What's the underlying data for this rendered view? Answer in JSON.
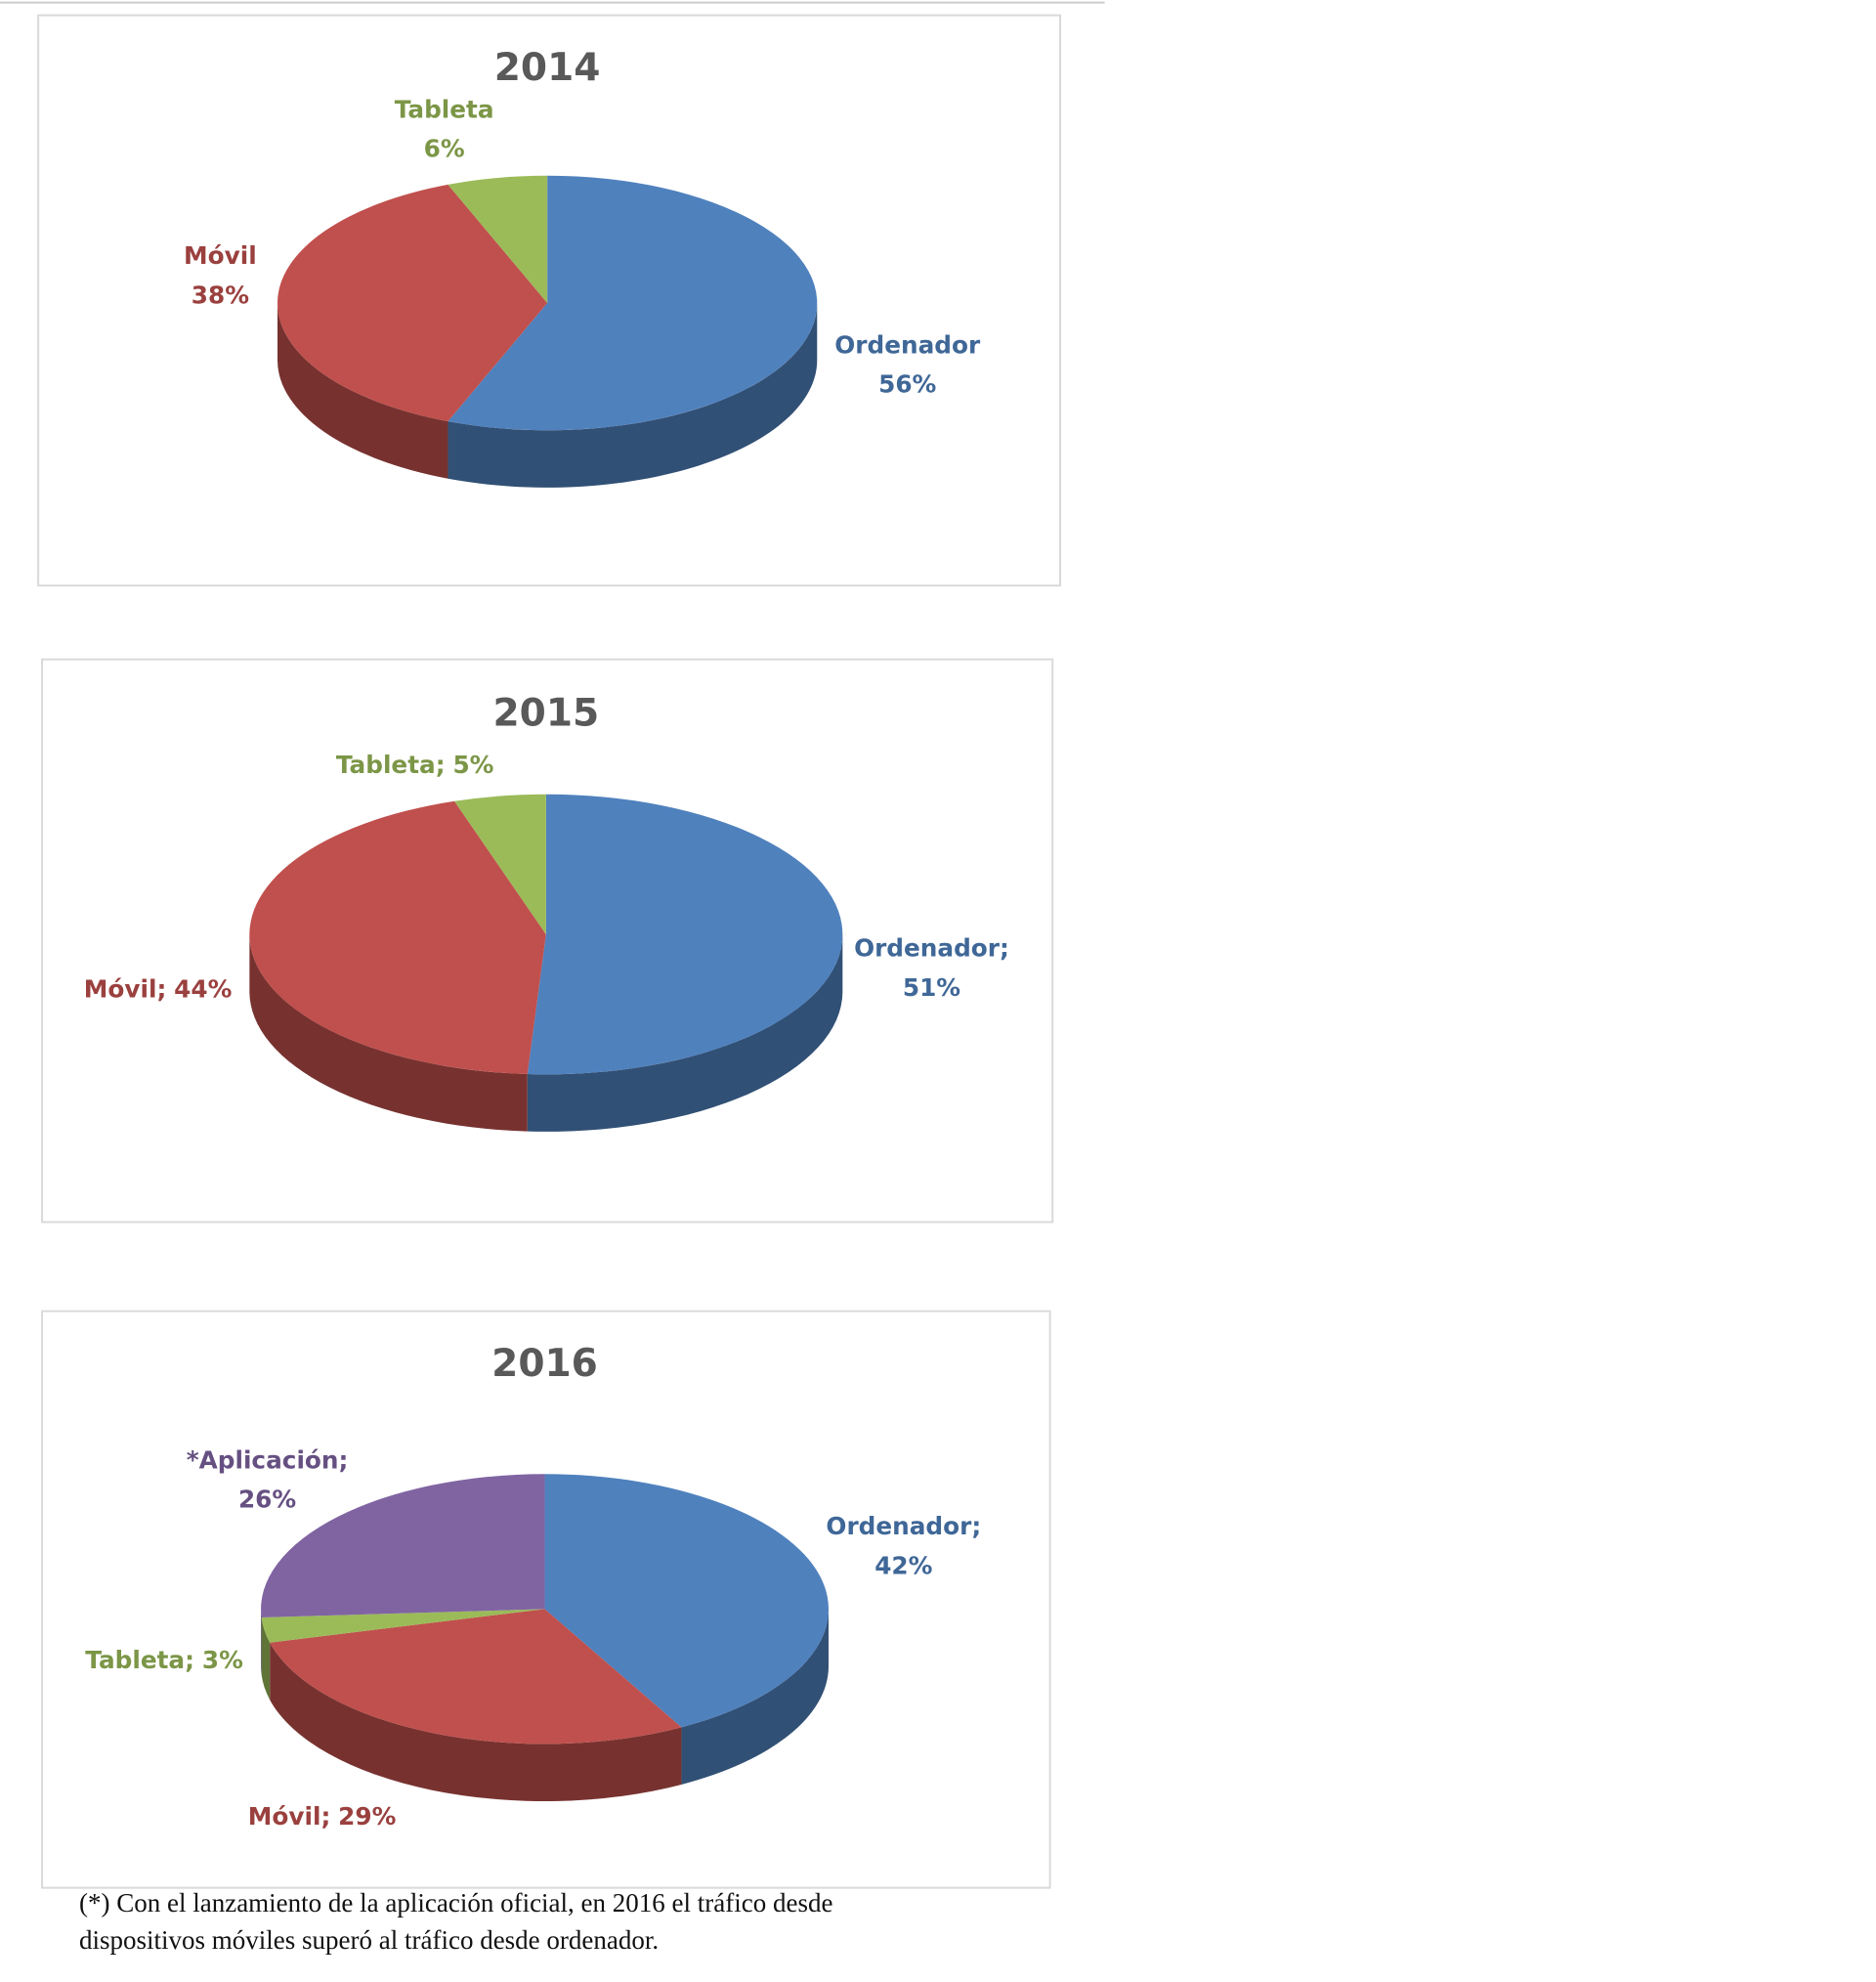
{
  "chart_data": [
    {
      "type": "pie3d",
      "title": "2014",
      "categories": [
        "Ordenador",
        "Móvil",
        "Tableta"
      ],
      "values": [
        56,
        38,
        6
      ],
      "value_labels": [
        "56%",
        "38%",
        "6%"
      ],
      "colors": [
        "#4f81bd",
        "#c0504d",
        "#9bbb59"
      ]
    },
    {
      "type": "pie3d",
      "title": "2015",
      "categories": [
        "Ordenador",
        "Móvil",
        "Tableta"
      ],
      "values": [
        51,
        44,
        5
      ],
      "value_labels": [
        "51%",
        "44%",
        "5%"
      ],
      "label_separator": ";",
      "colors": [
        "#4f81bd",
        "#c0504d",
        "#9bbb59"
      ]
    },
    {
      "type": "pie3d",
      "title": "2016",
      "categories": [
        "Ordenador",
        "Móvil",
        "Tableta",
        "*Aplicación"
      ],
      "values": [
        42,
        29,
        3,
        26
      ],
      "value_labels": [
        "42%",
        "29%",
        "3%",
        "26%"
      ],
      "label_separator": ";",
      "colors": [
        "#4f81bd",
        "#c0504d",
        "#9bbb59",
        "#8064a2"
      ]
    }
  ],
  "footnote": "(*) Con el lanzamiento de la aplicación oficial, en 2016 el tráfico desde dispositivos móviles superó al tráfico desde ordenador."
}
